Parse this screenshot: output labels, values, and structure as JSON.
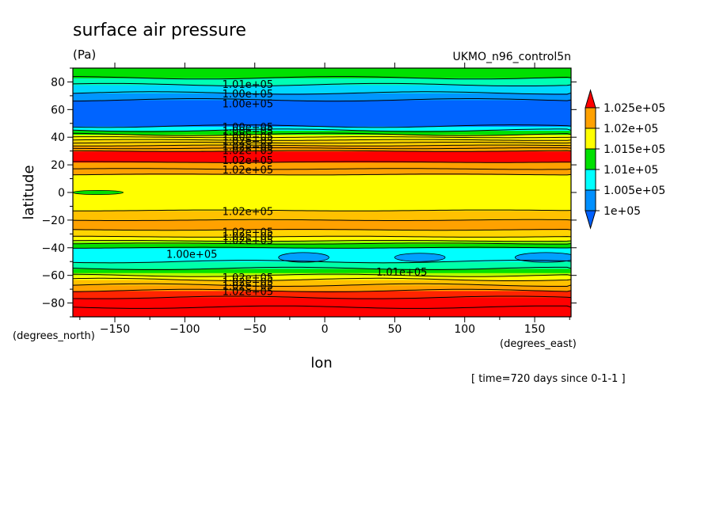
{
  "chart_data": {
    "type": "heatmap",
    "title": "surface air pressure",
    "units": "(Pa)",
    "dataset": "UKMO_n96_control5n",
    "xlabel": "lon",
    "ylabel": "latitude",
    "x_unit": "(degrees_east)",
    "y_unit": "(degrees_north)",
    "time_note": "[ time=720 days since 0-1-1 ]",
    "xlim": [
      -180,
      176
    ],
    "ylim": [
      -90,
      90
    ],
    "x_ticks": [
      -150,
      -100,
      -50,
      0,
      50,
      100,
      150
    ],
    "y_ticks": [
      -80,
      -60,
      -40,
      -20,
      0,
      20,
      40,
      60,
      80
    ],
    "x_tick_labels": [
      "−150",
      "−100",
      "−50",
      "0",
      "50",
      "100",
      "150"
    ],
    "y_tick_labels": [
      "−80",
      "−60",
      "−40",
      "−20",
      "0",
      "20",
      "40",
      "60",
      "80"
    ],
    "colorbar": {
      "labels": [
        "1.025e+05",
        "1.02e+05",
        "1.015e+05",
        "1.01e+05",
        "1.005e+05",
        "1e+05"
      ],
      "colors": [
        "#ff0000",
        "#ffa100",
        "#ffff00",
        "#00e000",
        "#00ffff",
        "#0090ff",
        "#0060ff"
      ]
    },
    "bands": [
      {
        "lat": [
          -90,
          -83
        ],
        "color": "#ff0000"
      },
      {
        "lat": [
          -83,
          -76
        ],
        "color": "#ff0000"
      },
      {
        "lat": [
          -76,
          -71
        ],
        "color": "#ff2400"
      },
      {
        "lat": [
          -71,
          -67
        ],
        "color": "#ffa100"
      },
      {
        "lat": [
          -67,
          -63
        ],
        "color": "#ffc100"
      },
      {
        "lat": [
          -63,
          -60
        ],
        "color": "#ffff00"
      },
      {
        "lat": [
          -60,
          -58
        ],
        "color": "#b4ff00"
      },
      {
        "lat": [
          -58,
          -55
        ],
        "color": "#00e000"
      },
      {
        "lat": [
          -55,
          -50
        ],
        "color": "#00ffaa"
      },
      {
        "lat": [
          -50,
          -40
        ],
        "color": "#00ffff"
      },
      {
        "lat": [
          -40,
          -37
        ],
        "color": "#00e000"
      },
      {
        "lat": [
          -37,
          -35
        ],
        "color": "#7fff00"
      },
      {
        "lat": [
          -35,
          -32
        ],
        "color": "#ffff00"
      },
      {
        "lat": [
          -32,
          -27
        ],
        "color": "#ffd400"
      },
      {
        "lat": [
          -27,
          -20
        ],
        "color": "#ffa100"
      },
      {
        "lat": [
          -20,
          -13
        ],
        "color": "#ffc100"
      },
      {
        "lat": [
          -13,
          13
        ],
        "color": "#ffff00"
      },
      {
        "lat": [
          13,
          22
        ],
        "color": "#ffa100"
      },
      {
        "lat": [
          22,
          30
        ],
        "color": "#ff0000"
      },
      {
        "lat": [
          30,
          34
        ],
        "color": "#ffa100"
      },
      {
        "lat": [
          34,
          38
        ],
        "color": "#ffd400"
      },
      {
        "lat": [
          38,
          42
        ],
        "color": "#ffff00"
      },
      {
        "lat": [
          42,
          45
        ],
        "color": "#00e000"
      },
      {
        "lat": [
          45,
          48
        ],
        "color": "#00ffff"
      },
      {
        "lat": [
          48,
          67
        ],
        "color": "#0064ff"
      },
      {
        "lat": [
          67,
          72
        ],
        "color": "#0096ff"
      },
      {
        "lat": [
          72,
          78
        ],
        "color": "#00d8ff"
      },
      {
        "lat": [
          78,
          83
        ],
        "color": "#00ffb4"
      },
      {
        "lat": [
          83,
          90
        ],
        "color": "#00e000"
      }
    ],
    "contour_lats": [
      -83,
      -76,
      -71,
      -67,
      -63,
      -60,
      -55,
      -50,
      -40,
      -37,
      -35,
      -32,
      -27,
      -20,
      -13,
      13,
      17,
      22,
      30,
      32,
      34,
      36,
      38,
      40,
      42,
      45,
      48,
      67,
      72,
      78,
      83
    ],
    "contour_labels": [
      {
        "text": "1.01e+05",
        "lon": -55,
        "lat": 78
      },
      {
        "text": "1.00e+05",
        "lon": -55,
        "lat": 71
      },
      {
        "text": "1.00e+05",
        "lon": -55,
        "lat": 64
      },
      {
        "text": "1.00e+05",
        "lon": -55,
        "lat": 47
      },
      {
        "text": "1.00e+05",
        "lon": -55,
        "lat": 44
      },
      {
        "text": "1.00e+05",
        "lon": -55,
        "lat": 40
      },
      {
        "text": "1.02e+05",
        "lon": -55,
        "lat": 37
      },
      {
        "text": "1.02e+05",
        "lon": -55,
        "lat": 33
      },
      {
        "text": "1.02e+05",
        "lon": -55,
        "lat": 30
      },
      {
        "text": "1.02e+05",
        "lon": -55,
        "lat": 23
      },
      {
        "text": "1.02e+05",
        "lon": -55,
        "lat": 16
      },
      {
        "text": "1.02e+05",
        "lon": -55,
        "lat": -14
      },
      {
        "text": "1.02e+05",
        "lon": -55,
        "lat": -29
      },
      {
        "text": "1.02e+05",
        "lon": -55,
        "lat": -32
      },
      {
        "text": "1.02e+05",
        "lon": -55,
        "lat": -35
      },
      {
        "text": "1.00e+05",
        "lon": -95,
        "lat": -45
      },
      {
        "text": "1.01e+05",
        "lon": 55,
        "lat": -58
      },
      {
        "text": "1.02e+05",
        "lon": -55,
        "lat": -62
      },
      {
        "text": "1.02e+05",
        "lon": -55,
        "lat": -65
      },
      {
        "text": "1.02e+05",
        "lon": -55,
        "lat": -68
      },
      {
        "text": "1.02e+05",
        "lon": -55,
        "lat": -72
      }
    ],
    "cells": [
      {
        "lon": -15,
        "lat": -47,
        "rx": 18,
        "ry": 3.5,
        "color": "#00a0ff"
      },
      {
        "lon": 68,
        "lat": -47,
        "rx": 18,
        "ry": 3,
        "color": "#00a0ff"
      },
      {
        "lon": 158,
        "lat": -47,
        "rx": 22,
        "ry": 3.5,
        "color": "#00a0ff"
      },
      {
        "lon": -162,
        "lat": 0,
        "rx": 18,
        "ry": 1.5,
        "color": "#00e000"
      }
    ]
  }
}
